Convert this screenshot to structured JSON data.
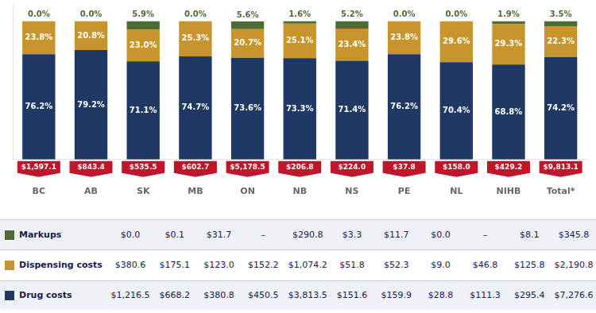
{
  "chart_data": {
    "type": "bar",
    "stacked": true,
    "data_labels": true,
    "grid": false,
    "tick_labels": "x",
    "categories": [
      "BC",
      "AB",
      "SK",
      "MB",
      "ON",
      "NB",
      "NS",
      "PE",
      "NL",
      "NIHB",
      "Total*"
    ],
    "ylim": [
      0,
      112
    ],
    "series": [
      {
        "name": "Drug costs",
        "color": "#1f3864",
        "values": [
          76.2,
          79.2,
          71.1,
          74.7,
          73.6,
          73.3,
          71.4,
          76.2,
          70.4,
          68.8,
          74.2
        ],
        "value_labels": [
          "76.2%",
          "79.2%",
          "71.1%",
          "74.7%",
          "73.6%",
          "73.3%",
          "71.4%",
          "76.2%",
          "70.4%",
          "68.8%",
          "74.2%"
        ],
        "amounts": [
          "$1,216.5",
          "$668.2",
          "$380.8",
          "$450.5",
          "$3,813.5",
          "$151.6",
          "$159.9",
          "$28.8",
          "$111.3",
          "$295.4",
          "$7,276.6"
        ]
      },
      {
        "name": "Dispensing costs",
        "color": "#c8952c",
        "values": [
          23.8,
          20.8,
          23.0,
          25.3,
          20.7,
          25.1,
          23.4,
          23.8,
          29.6,
          29.3,
          22.3
        ],
        "value_labels": [
          "23.8%",
          "20.8%",
          "23.0%",
          "25.3%",
          "20.7%",
          "25.1%",
          "23.4%",
          "23.8%",
          "29.6%",
          "29.3%",
          "22.3%"
        ],
        "amounts": [
          "$380.6",
          "$175.1",
          "$123.0",
          "$152.2",
          "$1,074.2",
          "$51.8",
          "$52.3",
          "$9.0",
          "$46.8",
          "$125.8",
          "$2,190.8"
        ]
      },
      {
        "name": "Markups",
        "color": "#4e6b33",
        "values": [
          0.0,
          0.0,
          5.9,
          0.0,
          5.6,
          1.6,
          5.2,
          0.0,
          0.0,
          1.9,
          3.5
        ],
        "value_labels": [
          "0.0%",
          "0.0%",
          "5.9%",
          "0.0%",
          "5.6%",
          "1.6%",
          "5.2%",
          "0.0%",
          "0.0%",
          "1.9%",
          "3.5%"
        ],
        "amounts": [
          "$0.0",
          "$0.1",
          "$31.7",
          "–",
          "$290.8",
          "$3.3",
          "$11.7",
          "$0.0",
          "–",
          "$8.1",
          "$345.8"
        ]
      }
    ],
    "totals": [
      "$1,597.1",
      "$843.4",
      "$535.5",
      "$602.7",
      "$5,178.5",
      "$206.8",
      "$224.0",
      "$37.8",
      "$158.0",
      "$429.2",
      "$9,813.1"
    ]
  }
}
